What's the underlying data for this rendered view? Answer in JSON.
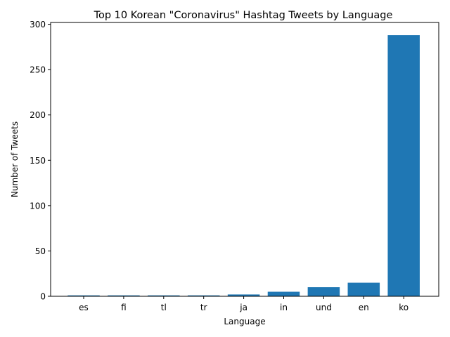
{
  "chart_data": {
    "type": "bar",
    "title": "Top 10 Korean \"Coronavirus\" Hashtag Tweets by Language",
    "xlabel": "Language",
    "ylabel": "Number of Tweets",
    "categories": [
      "es",
      "fi",
      "tl",
      "tr",
      "ja",
      "in",
      "und",
      "en",
      "ko"
    ],
    "values": [
      1,
      1,
      1,
      1,
      2,
      5,
      10,
      15,
      288
    ],
    "ylim": [
      0,
      302
    ],
    "yticks": [
      0,
      50,
      100,
      150,
      200,
      250,
      300
    ],
    "bar_color": "#1f77b4",
    "grid": false
  }
}
